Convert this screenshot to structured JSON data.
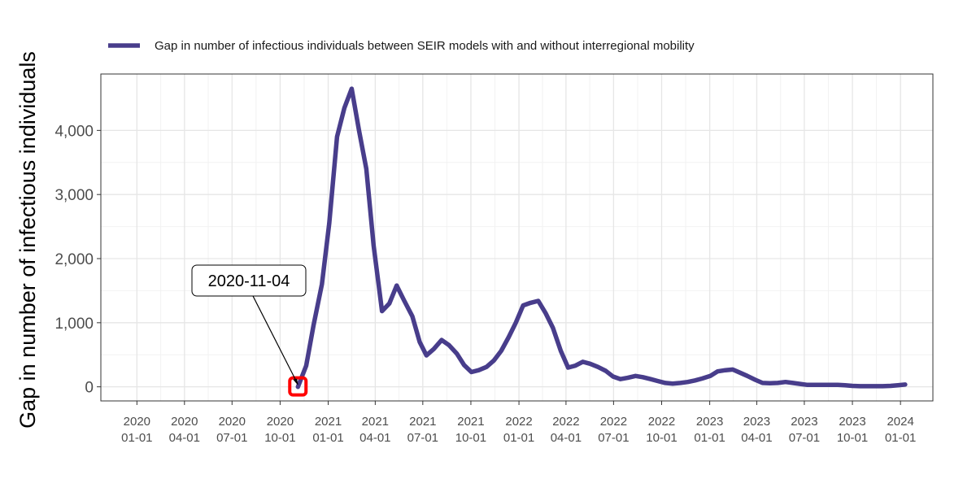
{
  "chart_data": {
    "type": "line",
    "title": "",
    "xlabel": "",
    "ylabel": "Gap in number of infectious individuals",
    "x_ticks": [
      [
        "2020",
        "01-01"
      ],
      [
        "2020",
        "04-01"
      ],
      [
        "2020",
        "07-01"
      ],
      [
        "2020",
        "10-01"
      ],
      [
        "2021",
        "01-01"
      ],
      [
        "2021",
        "04-01"
      ],
      [
        "2021",
        "07-01"
      ],
      [
        "2021",
        "10-01"
      ],
      [
        "2022",
        "01-01"
      ],
      [
        "2022",
        "04-01"
      ],
      [
        "2022",
        "07-01"
      ],
      [
        "2022",
        "10-01"
      ],
      [
        "2023",
        "01-01"
      ],
      [
        "2023",
        "04-01"
      ],
      [
        "2023",
        "07-01"
      ],
      [
        "2023",
        "10-01"
      ],
      [
        "2024",
        "01-01"
      ]
    ],
    "xlim": [
      "2019-10-24",
      "2024-03-03"
    ],
    "y_ticks": [
      "0",
      "1,000",
      "2,000",
      "3,000",
      "4,000"
    ],
    "ylim": [
      -220,
      4880
    ],
    "grid": true,
    "legend_position": "top",
    "series": [
      {
        "name": "Gap in number of infectious individuals between SEIR models with and without interregional mobility",
        "color": "#483D8B",
        "x": [
          "2020-11-04",
          "2020-11-20",
          "2020-12-04",
          "2020-12-20",
          "2021-01-03",
          "2021-01-18",
          "2021-02-01",
          "2021-02-15",
          "2021-03-01",
          "2021-03-15",
          "2021-03-29",
          "2021-04-14",
          "2021-04-28",
          "2021-05-12",
          "2021-05-26",
          "2021-06-11",
          "2021-06-25",
          "2021-07-08",
          "2021-07-22",
          "2021-08-06",
          "2021-08-20",
          "2021-09-04",
          "2021-09-18",
          "2021-10-02",
          "2021-10-16",
          "2021-10-31",
          "2021-11-14",
          "2021-11-28",
          "2021-12-12",
          "2021-12-26",
          "2022-01-09",
          "2022-01-23",
          "2022-02-07",
          "2022-02-21",
          "2022-03-07",
          "2022-03-22",
          "2022-04-05",
          "2022-04-19",
          "2022-05-03",
          "2022-05-17",
          "2022-06-01",
          "2022-06-16",
          "2022-06-30",
          "2022-07-14",
          "2022-07-28",
          "2022-08-12",
          "2022-08-26",
          "2022-09-10",
          "2022-09-24",
          "2022-10-08",
          "2022-10-22",
          "2022-11-06",
          "2022-11-20",
          "2022-12-04",
          "2022-12-18",
          "2023-01-02",
          "2023-01-16",
          "2023-01-31",
          "2023-02-14",
          "2023-02-28",
          "2023-03-14",
          "2023-03-29",
          "2023-04-12",
          "2023-04-26",
          "2023-05-11",
          "2023-05-26",
          "2023-06-09",
          "2023-06-23",
          "2023-07-07",
          "2023-07-21",
          "2023-08-05",
          "2023-08-20",
          "2023-09-03",
          "2023-09-17",
          "2023-10-01",
          "2023-10-16",
          "2023-10-31",
          "2023-11-14",
          "2023-11-28",
          "2023-12-13",
          "2023-12-27",
          "2024-01-10"
        ],
        "y": [
          0,
          330,
          960,
          1600,
          2550,
          3900,
          4350,
          4650,
          4000,
          3400,
          2200,
          1180,
          1300,
          1580,
          1350,
          1100,
          700,
          490,
          590,
          730,
          650,
          520,
          340,
          230,
          260,
          310,
          410,
          560,
          770,
          1000,
          1270,
          1310,
          1340,
          1150,
          920,
          560,
          300,
          330,
          390,
          360,
          310,
          250,
          160,
          120,
          140,
          170,
          150,
          120,
          90,
          60,
          50,
          60,
          75,
          100,
          130,
          170,
          240,
          260,
          270,
          220,
          170,
          110,
          60,
          55,
          60,
          75,
          60,
          45,
          30,
          30,
          30,
          30,
          30,
          25,
          15,
          10,
          10,
          10,
          10,
          15,
          25,
          35
        ]
      }
    ],
    "annotation": {
      "label": "2020-11-04",
      "x": "2020-11-04",
      "y": 0
    }
  }
}
